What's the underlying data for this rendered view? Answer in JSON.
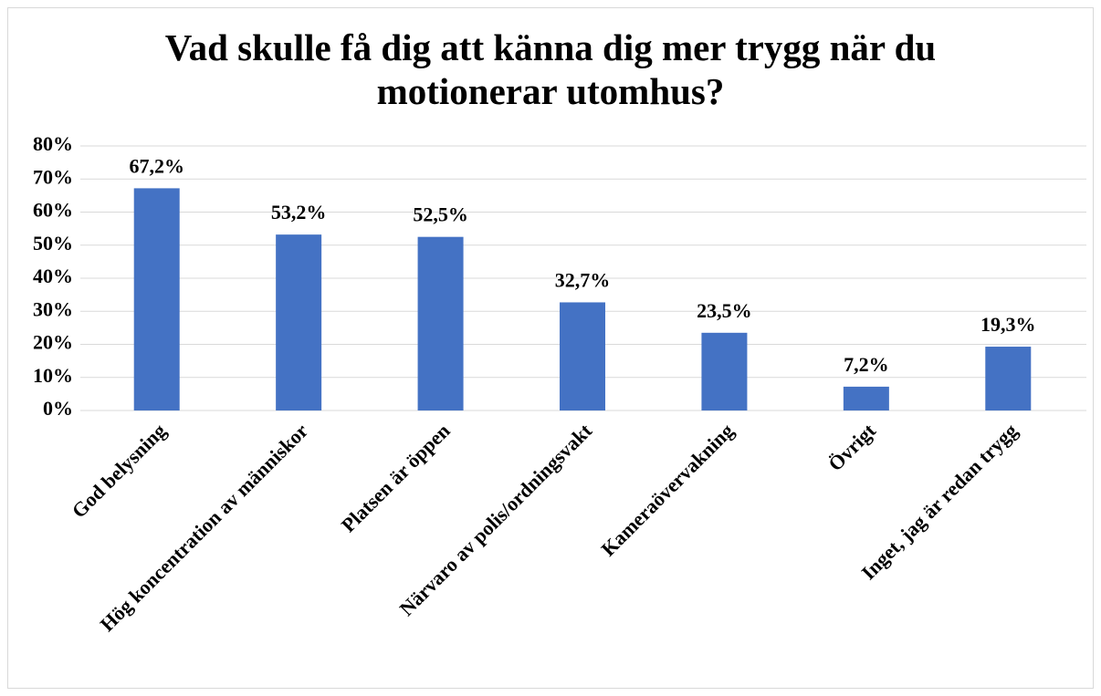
{
  "chart_data": {
    "type": "bar",
    "title": "Vad skulle få dig att känna dig mer trygg när du motionerar utomhus?",
    "categories": [
      "God belysning",
      "Hög koncentration av människor",
      "Platsen är öppen",
      "Närvaro av polis/ordningsvakt",
      "Kameraövervakning",
      "Övrigt",
      "Inget, jag är redan trygg"
    ],
    "values": [
      67.2,
      53.2,
      52.5,
      32.7,
      23.5,
      7.2,
      19.3
    ],
    "value_labels": [
      "67,2%",
      "53,2%",
      "52,5%",
      "32,7%",
      "23,5%",
      "7,2%",
      "19,3%"
    ],
    "color": "#4472c4",
    "ylim": [
      0,
      80
    ],
    "yticks": [
      {
        "value": 0,
        "label": "0%"
      },
      {
        "value": 10,
        "label": "10%"
      },
      {
        "value": 20,
        "label": "20%"
      },
      {
        "value": 30,
        "label": "30%"
      },
      {
        "value": 40,
        "label": "40%"
      },
      {
        "value": 50,
        "label": "50%"
      },
      {
        "value": 60,
        "label": "60%"
      },
      {
        "value": 70,
        "label": "70%"
      },
      {
        "value": 80,
        "label": "80%"
      }
    ],
    "grid": true
  }
}
